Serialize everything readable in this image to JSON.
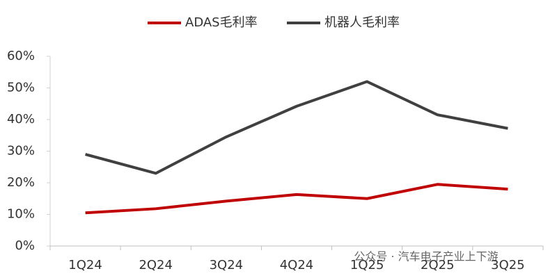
{
  "chart_data": {
    "type": "line",
    "categories": [
      "1Q24",
      "2Q24",
      "3Q24",
      "4Q24",
      "1Q25",
      "2Q25",
      "3Q25"
    ],
    "series": [
      {
        "name": "ADAS毛利率",
        "color": "#c00000",
        "values": [
          10.5,
          11.8,
          14.2,
          16.3,
          15.0,
          19.5,
          18.0
        ]
      },
      {
        "name": "机器人毛利率",
        "color": "#404040",
        "values": [
          29.0,
          23.0,
          34.5,
          44.2,
          52.0,
          41.5,
          37.2
        ]
      }
    ],
    "ylim": [
      0,
      60
    ],
    "yticks": [
      {
        "value": 0,
        "label": "0%"
      },
      {
        "value": 10,
        "label": "10%"
      },
      {
        "value": 20,
        "label": "20%"
      },
      {
        "value": 30,
        "label": "30%"
      },
      {
        "value": 40,
        "label": "40%"
      },
      {
        "value": 50,
        "label": "50%"
      },
      {
        "value": 60,
        "label": "60%"
      }
    ],
    "legend": "top",
    "watermark": "公众号 · 汽车电子产业上下游"
  }
}
